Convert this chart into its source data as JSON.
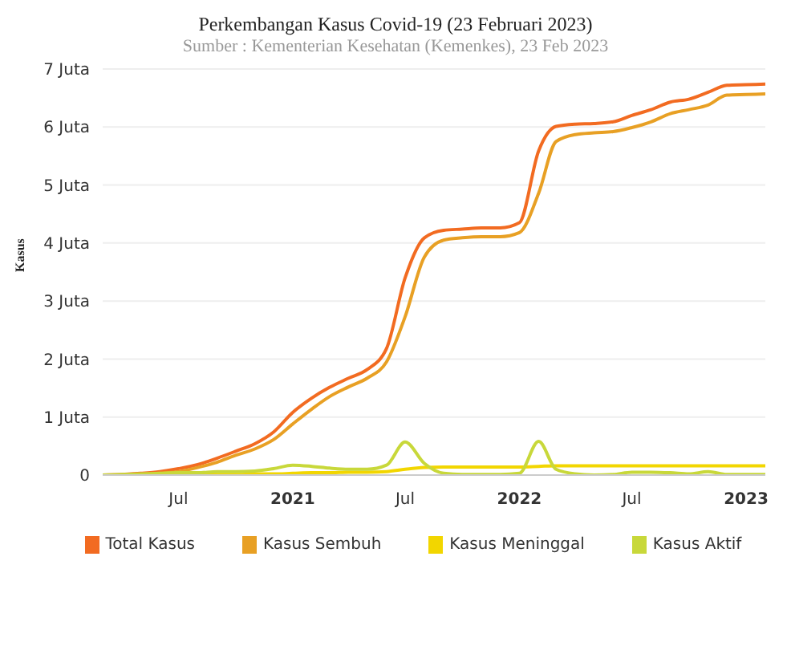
{
  "chart_data": {
    "type": "line",
    "title": "Perkembangan Kasus Covid-19 (23 Februari 2023)",
    "subtitle": "Sumber : Kementerian Kesehatan (Kemenkes), 23 Feb 2023",
    "ylabel": "Kasus",
    "x": [
      "2020-03",
      "2020-04",
      "2020-05",
      "2020-06",
      "2020-07",
      "2020-08",
      "2020-09",
      "2020-10",
      "2020-11",
      "2020-12",
      "2021-01",
      "2021-02",
      "2021-03",
      "2021-04",
      "2021-05",
      "2021-06",
      "2021-07",
      "2021-08",
      "2021-09",
      "2021-10",
      "2021-11",
      "2021-12",
      "2022-01",
      "2022-02",
      "2022-03",
      "2022-04",
      "2022-05",
      "2022-06",
      "2022-07",
      "2022-08",
      "2022-09",
      "2022-10",
      "2022-11",
      "2022-12",
      "2023-01",
      "2023-02"
    ],
    "series": [
      {
        "name": "Total Kasus",
        "color": "#f26b21",
        "values": [
          0.0,
          0.01,
          0.03,
          0.06,
          0.11,
          0.18,
          0.29,
          0.41,
          0.54,
          0.74,
          1.08,
          1.33,
          1.51,
          1.67,
          1.82,
          2.18,
          3.4,
          4.09,
          4.22,
          4.24,
          4.26,
          4.26,
          4.35,
          5.59,
          6.01,
          6.05,
          6.06,
          6.09,
          6.2,
          6.3,
          6.43,
          6.48,
          6.6,
          6.72,
          6.73,
          6.74
        ]
      },
      {
        "name": "Kasus Sembuh",
        "color": "#e8a024",
        "values": [
          0.0,
          0.0,
          0.01,
          0.03,
          0.06,
          0.13,
          0.22,
          0.34,
          0.45,
          0.61,
          0.88,
          1.14,
          1.35,
          1.52,
          1.67,
          1.95,
          2.73,
          3.76,
          4.05,
          4.09,
          4.11,
          4.11,
          4.18,
          4.86,
          5.75,
          5.87,
          5.9,
          5.92,
          5.99,
          6.09,
          6.23,
          6.3,
          6.38,
          6.55,
          6.56,
          6.57
        ]
      },
      {
        "name": "Kasus Meninggal",
        "color": "#f2d600",
        "values": [
          null,
          null,
          null,
          null,
          0.01,
          0.01,
          0.01,
          0.01,
          0.02,
          0.02,
          0.03,
          0.04,
          0.04,
          0.05,
          0.05,
          0.06,
          0.1,
          0.13,
          0.14,
          0.14,
          0.14,
          0.14,
          0.14,
          0.15,
          0.16,
          0.16,
          0.16,
          0.16,
          0.16,
          0.16,
          0.16,
          0.16,
          0.16,
          0.16,
          0.16,
          0.16
        ]
      },
      {
        "name": "Kasus Aktif",
        "color": "#c8d83a",
        "values": [
          0.0,
          0.01,
          0.02,
          0.03,
          0.04,
          0.04,
          0.06,
          0.06,
          0.07,
          0.11,
          0.17,
          0.15,
          0.12,
          0.1,
          0.1,
          0.17,
          0.57,
          0.2,
          0.03,
          0.01,
          0.01,
          0.01,
          0.03,
          0.58,
          0.1,
          0.02,
          0.0,
          0.01,
          0.05,
          0.05,
          0.04,
          0.02,
          0.06,
          0.01,
          0.01,
          0.01
        ]
      }
    ],
    "xlim": [
      "2020-03",
      "2023-02"
    ],
    "xticks": [
      {
        "value": "2020-07",
        "label": "Jul"
      },
      "2021",
      {
        "value": "2021-07",
        "label": "Jul"
      },
      "2022",
      {
        "value": "2022-07",
        "label": "Jul"
      },
      "2023"
    ],
    "ylim": [
      0,
      7
    ],
    "yticks": [
      0,
      {
        "value": 1,
        "label": "1 Juta"
      },
      {
        "value": 2,
        "label": "2 Juta"
      },
      {
        "value": 3,
        "label": "3 Juta"
      },
      {
        "value": 4,
        "label": "4 Juta"
      },
      {
        "value": 5,
        "label": "5 Juta"
      },
      {
        "value": 6,
        "label": "6 Juta"
      },
      {
        "value": 7,
        "label": "7 Juta"
      }
    ],
    "grid": "y",
    "legend": "bottom",
    "marker": "none",
    "line_style": "solid"
  }
}
